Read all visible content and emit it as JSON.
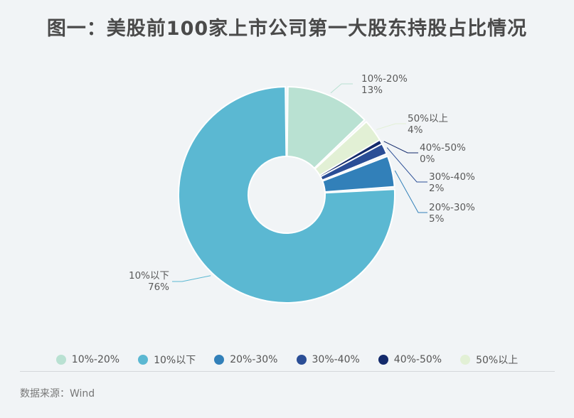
{
  "chart_data": {
    "type": "pie",
    "title": "图一：美股前100家上市公司第一大股东持股占比情况",
    "categories": [
      "10%-20%",
      "50%以上",
      "40%-50%",
      "30%-40%",
      "20%-30%",
      "10%以下"
    ],
    "values": [
      13,
      4,
      0,
      2,
      5,
      76
    ],
    "value_labels": [
      "13%",
      "4%",
      "0%",
      "2%",
      "5%",
      "76%"
    ],
    "colors": [
      "#b9e1d2",
      "#e2f0d5",
      "#132a6b",
      "#2b4e96",
      "#3280b9",
      "#5bb8d2"
    ],
    "donut": true,
    "legend": {
      "position": "bottom",
      "order": [
        "10%-20%",
        "10%以下",
        "20%-30%",
        "30%-40%",
        "40%-50%",
        "50%以上"
      ]
    }
  },
  "source": "数据来源：Wind"
}
